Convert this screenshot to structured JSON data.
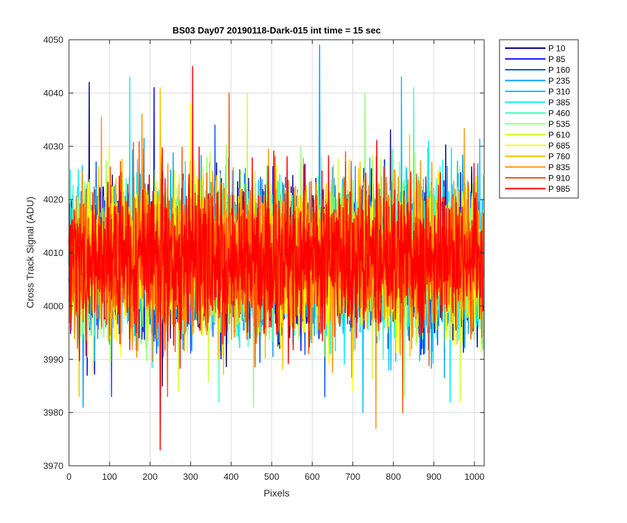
{
  "chart_data": {
    "type": "line",
    "title": "BS03 Day07 20190118-Dark-015 int time = 15 sec",
    "xlabel": "Pixels",
    "ylabel": "Cross Track Signal (ADU)",
    "xlim": [
      0,
      1024
    ],
    "ylim": [
      3970,
      4050
    ],
    "xticks": [
      0,
      100,
      200,
      300,
      400,
      500,
      600,
      700,
      800,
      900,
      1000
    ],
    "yticks": [
      3970,
      3980,
      3990,
      4000,
      4010,
      4020,
      4030,
      4040,
      4050
    ],
    "grid": true,
    "legend_position": "outside-top-right",
    "noise_profile": {
      "mean": 4009,
      "typical_low": 3990,
      "typical_high": 4030
    },
    "series": [
      {
        "name": "P 10",
        "color": "#00008F",
        "peak_points": [
          [
            50,
            4042
          ],
          [
            230,
            3985
          ]
        ]
      },
      {
        "name": "P 85",
        "color": "#0000EF",
        "peak_points": [
          [
            210,
            4041
          ],
          [
            45,
            3987
          ]
        ]
      },
      {
        "name": "P 160",
        "color": "#0050FF",
        "peak_points": [
          [
            360,
            4034
          ],
          [
            105,
            3983
          ]
        ]
      },
      {
        "name": "P 235",
        "color": "#009FFF",
        "peak_points": [
          [
            618,
            4049
          ],
          [
            35,
            3981
          ]
        ]
      },
      {
        "name": "P 310",
        "color": "#00BFFF",
        "peak_points": [
          [
            820,
            4043
          ],
          [
            725,
            3980
          ]
        ]
      },
      {
        "name": "P 385",
        "color": "#00EFFF",
        "peak_points": [
          [
            150,
            4043
          ],
          [
            940,
            3982
          ]
        ]
      },
      {
        "name": "P 460",
        "color": "#40FFBF",
        "peak_points": [
          [
            850,
            4041
          ],
          [
            370,
            3982
          ]
        ]
      },
      {
        "name": "P 535",
        "color": "#8FFF70",
        "peak_points": [
          [
            730,
            4040
          ],
          [
            455,
            3981
          ]
        ]
      },
      {
        "name": "P 610",
        "color": "#CFFF30",
        "peak_points": [
          [
            440,
            4040
          ],
          [
            965,
            3982
          ]
        ]
      },
      {
        "name": "P 685",
        "color": "#FFFF00",
        "peak_points": [
          [
            300,
            4038
          ],
          [
            700,
            3984
          ]
        ]
      },
      {
        "name": "P 760",
        "color": "#FFBF00",
        "peak_points": [
          [
            225,
            4041
          ],
          [
            25,
            3983
          ]
        ]
      },
      {
        "name": "P 835",
        "color": "#FF8F00",
        "peak_points": [
          [
            180,
            4036
          ],
          [
            757,
            3977
          ]
        ]
      },
      {
        "name": "P 910",
        "color": "#FF5000",
        "peak_points": [
          [
            395,
            4040
          ],
          [
            823,
            3980
          ]
        ]
      },
      {
        "name": "P 985",
        "color": "#FF0000",
        "peak_points": [
          [
            305,
            4045
          ],
          [
            225,
            3973
          ]
        ]
      }
    ]
  }
}
